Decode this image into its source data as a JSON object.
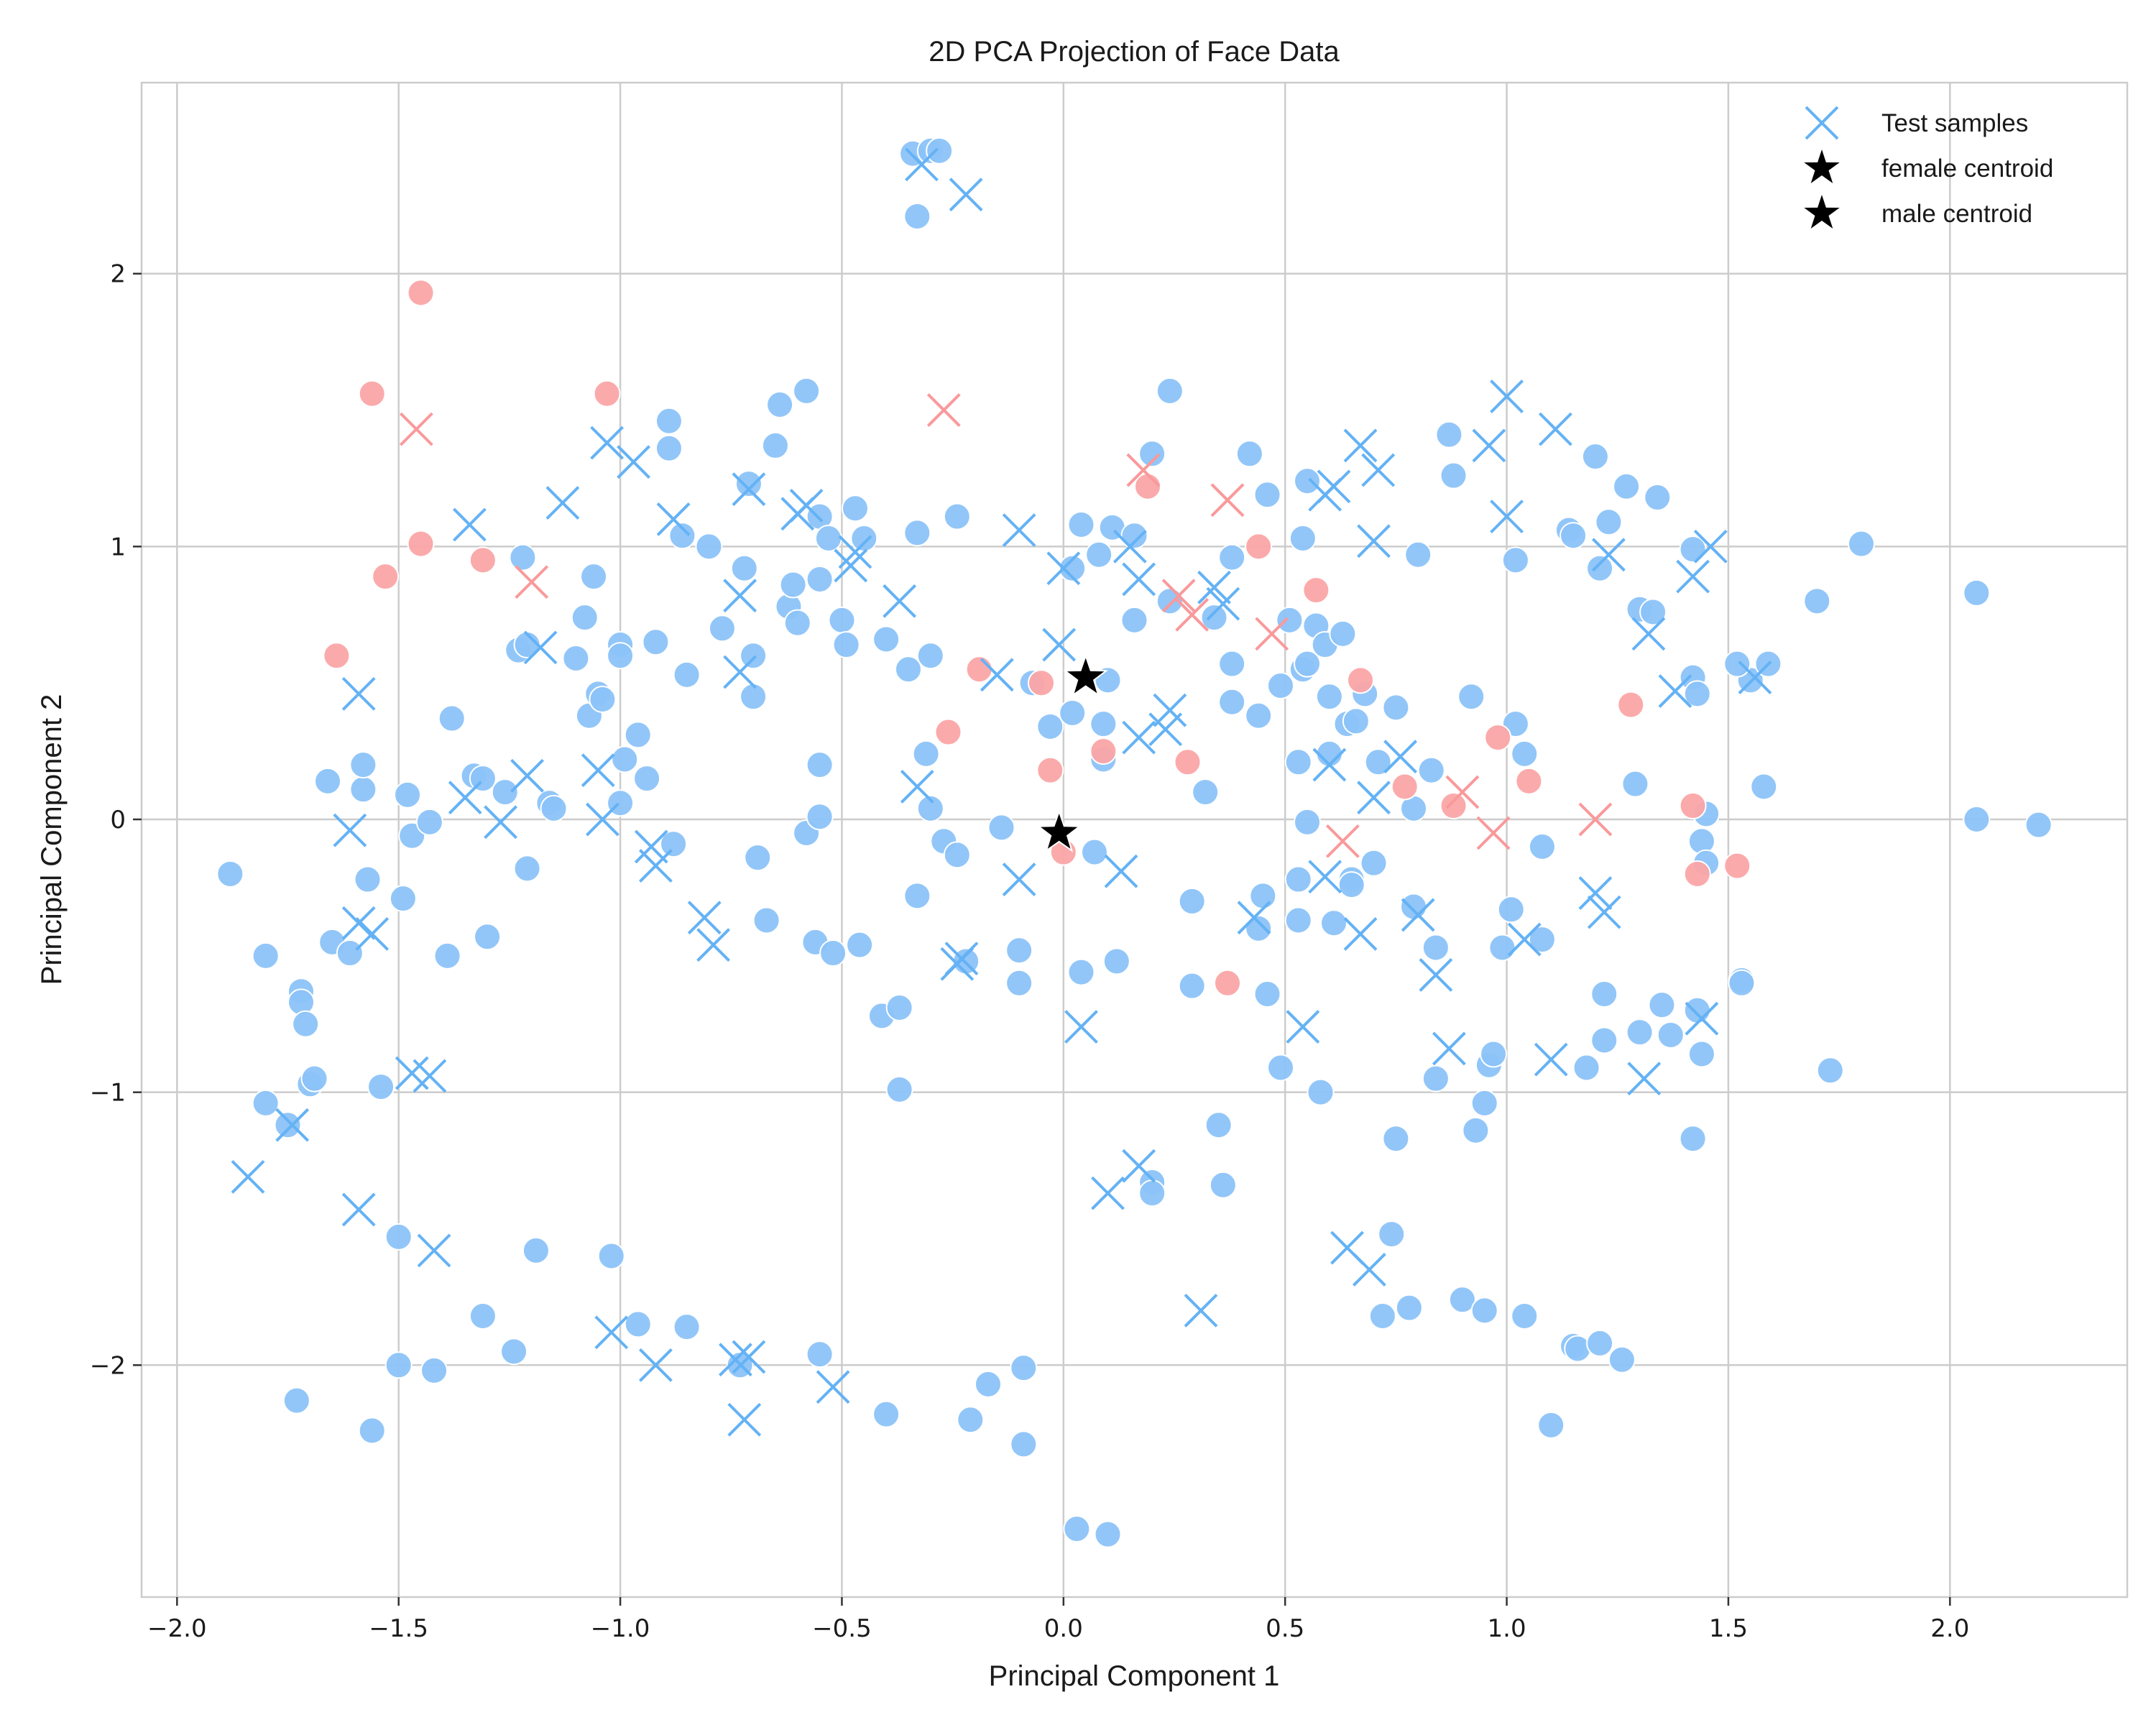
{
  "chart_data": {
    "type": "scatter",
    "title": "2D PCA Projection of Face Data",
    "xlabel": "Principal Component 1",
    "ylabel": "Principal Component 2",
    "xlim": [
      -2.08,
      2.4
    ],
    "ylim": [
      -2.85,
      2.7
    ],
    "xticks": [
      -2.0,
      -1.5,
      -1.0,
      -0.5,
      0.0,
      0.5,
      1.0,
      1.5,
      2.0
    ],
    "xtick_labels": [
      "−2.0",
      "−1.5",
      "−1.0",
      "−0.5",
      "0.0",
      "0.5",
      "1.0",
      "1.5",
      "2.0"
    ],
    "yticks": [
      -2,
      -1,
      0,
      1,
      2
    ],
    "ytick_labels": [
      "−2",
      "−1",
      "0",
      "1",
      "2"
    ],
    "grid": true,
    "legend_placement": "top-right",
    "legend": [
      {
        "label": "Test samples",
        "marker": "x",
        "color": "#64b2f5"
      },
      {
        "label": "female centroid",
        "marker": "star",
        "color": "#000000"
      },
      {
        "label": "male centroid",
        "marker": "star",
        "color": "#000000"
      }
    ],
    "colors": {
      "male": "#8cc3f8",
      "female": "#fba5a6",
      "test_male": "#64b2f5",
      "test_female": "#f9999b",
      "centroid": "#000000"
    },
    "centroids": [
      {
        "name": "female centroid",
        "x": 0.05,
        "y": 0.52
      },
      {
        "name": "male centroid",
        "x": -0.01,
        "y": -0.05
      }
    ],
    "train_male": [
      [
        -0.34,
        2.44
      ],
      [
        -0.3,
        2.45
      ],
      [
        -0.28,
        2.45
      ],
      [
        -0.33,
        2.21
      ],
      [
        -1.88,
        -0.2
      ],
      [
        -1.8,
        -0.5
      ],
      [
        -1.8,
        -1.04
      ],
      [
        -1.75,
        -1.12
      ],
      [
        -1.73,
        -2.13
      ],
      [
        -1.72,
        -0.63
      ],
      [
        -1.72,
        -0.67
      ],
      [
        -1.71,
        -0.75
      ],
      [
        -1.7,
        -0.97
      ],
      [
        -1.69,
        -0.95
      ],
      [
        -1.66,
        0.14
      ],
      [
        -1.65,
        -0.45
      ],
      [
        -1.61,
        -0.49
      ],
      [
        -1.58,
        0.11
      ],
      [
        -1.58,
        0.2
      ],
      [
        -1.57,
        -0.22
      ],
      [
        -1.56,
        -2.24
      ],
      [
        -1.54,
        -0.98
      ],
      [
        -1.5,
        -2.0
      ],
      [
        -1.5,
        -1.53
      ],
      [
        -1.49,
        -0.29
      ],
      [
        -1.48,
        0.09
      ],
      [
        -1.47,
        -0.06
      ],
      [
        -1.42,
        -2.02
      ],
      [
        -1.43,
        -0.01
      ],
      [
        -1.39,
        -0.5
      ],
      [
        -1.38,
        0.37
      ],
      [
        -1.33,
        0.16
      ],
      [
        -1.31,
        0.15
      ],
      [
        -1.3,
        -0.43
      ],
      [
        -1.31,
        -1.82
      ],
      [
        -1.26,
        0.1
      ],
      [
        -1.24,
        -1.95
      ],
      [
        -1.23,
        0.62
      ],
      [
        -1.22,
        0.96
      ],
      [
        -1.21,
        0.64
      ],
      [
        -1.21,
        -0.18
      ],
      [
        -1.19,
        -1.58
      ],
      [
        -1.16,
        0.06
      ],
      [
        -1.15,
        0.04
      ],
      [
        -1.1,
        0.59
      ],
      [
        -1.08,
        0.74
      ],
      [
        -1.07,
        0.38
      ],
      [
        -1.06,
        0.89
      ],
      [
        -1.05,
        0.46
      ],
      [
        -1.04,
        0.44
      ],
      [
        -1.02,
        -1.6
      ],
      [
        -1.0,
        0.64
      ],
      [
        -1.0,
        0.6
      ],
      [
        -1.0,
        0.06
      ],
      [
        -0.99,
        0.22
      ],
      [
        -0.96,
        -1.85
      ],
      [
        -0.96,
        0.31
      ],
      [
        -0.94,
        0.15
      ],
      [
        -0.92,
        0.65
      ],
      [
        -0.89,
        1.46
      ],
      [
        -0.89,
        1.36
      ],
      [
        -0.88,
        -0.09
      ],
      [
        -0.86,
        1.04
      ],
      [
        -0.85,
        -1.86
      ],
      [
        -0.85,
        0.53
      ],
      [
        -0.8,
        1.0
      ],
      [
        -0.77,
        0.7
      ],
      [
        -0.73,
        -2.0
      ],
      [
        -0.72,
        0.92
      ],
      [
        -0.71,
        1.23
      ],
      [
        -0.7,
        0.6
      ],
      [
        -0.7,
        0.45
      ],
      [
        -0.69,
        -0.14
      ],
      [
        -0.67,
        -0.37
      ],
      [
        -0.65,
        1.37
      ],
      [
        -0.64,
        1.52
      ],
      [
        -0.62,
        0.78
      ],
      [
        -0.61,
        0.86
      ],
      [
        -0.6,
        0.72
      ],
      [
        -0.58,
        1.57
      ],
      [
        -0.58,
        -0.05
      ],
      [
        -0.56,
        -0.45
      ],
      [
        -0.55,
        1.11
      ],
      [
        -0.55,
        0.88
      ],
      [
        -0.55,
        0.2
      ],
      [
        -0.55,
        0.01
      ],
      [
        -0.55,
        -1.96
      ],
      [
        -0.53,
        1.03
      ],
      [
        -0.52,
        -0.49
      ],
      [
        -0.5,
        0.73
      ],
      [
        -0.49,
        0.64
      ],
      [
        -0.47,
        1.14
      ],
      [
        -0.46,
        -0.46
      ],
      [
        -0.45,
        1.03
      ],
      [
        -0.41,
        -0.72
      ],
      [
        -0.4,
        0.66
      ],
      [
        -0.4,
        -2.18
      ],
      [
        -0.37,
        -0.69
      ],
      [
        -0.37,
        -0.99
      ],
      [
        -0.35,
        0.55
      ],
      [
        -0.33,
        1.05
      ],
      [
        -0.33,
        -0.28
      ],
      [
        -0.31,
        0.24
      ],
      [
        -0.3,
        0.6
      ],
      [
        -0.3,
        0.04
      ],
      [
        -0.27,
        -0.08
      ],
      [
        -0.24,
        -0.13
      ],
      [
        -0.24,
        1.11
      ],
      [
        -0.22,
        -0.52
      ],
      [
        -0.21,
        -2.2
      ],
      [
        -0.17,
        -2.07
      ],
      [
        -0.14,
        -0.03
      ],
      [
        -0.1,
        -0.48
      ],
      [
        -0.1,
        -0.6
      ],
      [
        -0.09,
        -2.01
      ],
      [
        -0.09,
        -2.29
      ],
      [
        -0.07,
        0.5
      ],
      [
        -0.03,
        0.34
      ],
      [
        0.02,
        0.92
      ],
      [
        0.02,
        0.39
      ],
      [
        0.03,
        -2.6
      ],
      [
        0.04,
        1.08
      ],
      [
        0.04,
        -0.56
      ],
      [
        0.07,
        -0.12
      ],
      [
        0.08,
        0.97
      ],
      [
        0.09,
        0.22
      ],
      [
        0.09,
        0.35
      ],
      [
        0.1,
        0.51
      ],
      [
        0.1,
        -2.62
      ],
      [
        0.11,
        1.07
      ],
      [
        0.12,
        -0.52
      ],
      [
        0.16,
        0.73
      ],
      [
        0.16,
        1.04
      ],
      [
        0.2,
        1.34
      ],
      [
        0.2,
        -1.33
      ],
      [
        0.2,
        -1.37
      ],
      [
        0.24,
        1.57
      ],
      [
        0.24,
        0.8
      ],
      [
        0.29,
        -0.3
      ],
      [
        0.29,
        -0.61
      ],
      [
        0.32,
        0.1
      ],
      [
        0.34,
        0.74
      ],
      [
        0.35,
        -1.12
      ],
      [
        0.36,
        -1.34
      ],
      [
        0.38,
        0.96
      ],
      [
        0.38,
        0.57
      ],
      [
        0.38,
        0.43
      ],
      [
        0.42,
        1.34
      ],
      [
        0.44,
        -0.4
      ],
      [
        0.44,
        0.38
      ],
      [
        0.45,
        -0.28
      ],
      [
        0.46,
        1.19
      ],
      [
        0.46,
        -0.64
      ],
      [
        0.49,
        0.49
      ],
      [
        0.49,
        -0.91
      ],
      [
        0.51,
        0.73
      ],
      [
        0.53,
        0.21
      ],
      [
        0.53,
        -0.22
      ],
      [
        0.53,
        -0.37
      ],
      [
        0.54,
        1.03
      ],
      [
        0.54,
        0.55
      ],
      [
        0.55,
        0.57
      ],
      [
        0.55,
        -0.01
      ],
      [
        0.55,
        1.24
      ],
      [
        0.57,
        0.71
      ],
      [
        0.58,
        -1.0
      ],
      [
        0.59,
        0.64
      ],
      [
        0.6,
        0.24
      ],
      [
        0.6,
        0.45
      ],
      [
        0.61,
        -0.38
      ],
      [
        0.63,
        0.68
      ],
      [
        0.64,
        0.35
      ],
      [
        0.65,
        -0.22
      ],
      [
        0.65,
        -0.24
      ],
      [
        0.66,
        0.36
      ],
      [
        0.68,
        0.46
      ],
      [
        0.7,
        -0.16
      ],
      [
        0.71,
        0.21
      ],
      [
        0.72,
        -1.82
      ],
      [
        0.74,
        -1.52
      ],
      [
        0.75,
        0.41
      ],
      [
        0.75,
        -1.17
      ],
      [
        0.78,
        -1.79
      ],
      [
        0.79,
        -0.32
      ],
      [
        0.79,
        0.04
      ],
      [
        0.8,
        0.97
      ],
      [
        0.83,
        0.18
      ],
      [
        0.84,
        -0.47
      ],
      [
        0.84,
        -0.95
      ],
      [
        0.87,
        1.41
      ],
      [
        0.88,
        1.26
      ],
      [
        0.9,
        -1.76
      ],
      [
        0.92,
        0.45
      ],
      [
        0.93,
        -1.14
      ],
      [
        0.95,
        -1.8
      ],
      [
        0.95,
        -1.04
      ],
      [
        0.96,
        -0.9
      ],
      [
        0.97,
        -0.86
      ],
      [
        0.99,
        -0.47
      ],
      [
        1.01,
        -0.33
      ],
      [
        1.02,
        0.35
      ],
      [
        1.02,
        0.95
      ],
      [
        1.04,
        0.24
      ],
      [
        1.04,
        -1.82
      ],
      [
        1.08,
        -0.44
      ],
      [
        1.08,
        -0.1
      ],
      [
        1.1,
        -2.22
      ],
      [
        1.14,
        1.06
      ],
      [
        1.15,
        1.04
      ],
      [
        1.15,
        -1.93
      ],
      [
        1.16,
        -1.94
      ],
      [
        1.18,
        -0.91
      ],
      [
        1.2,
        1.33
      ],
      [
        1.21,
        0.92
      ],
      [
        1.21,
        -1.92
      ],
      [
        1.22,
        -0.64
      ],
      [
        1.22,
        -0.81
      ],
      [
        1.23,
        1.09
      ],
      [
        1.26,
        -1.98
      ],
      [
        1.27,
        1.22
      ],
      [
        1.29,
        0.13
      ],
      [
        1.3,
        0.77
      ],
      [
        1.3,
        -0.78
      ],
      [
        1.33,
        0.76
      ],
      [
        1.34,
        1.18
      ],
      [
        1.35,
        -0.68
      ],
      [
        1.37,
        -0.79
      ],
      [
        1.42,
        0.52
      ],
      [
        1.42,
        0.99
      ],
      [
        1.42,
        -1.17
      ],
      [
        1.43,
        -0.7
      ],
      [
        1.43,
        0.46
      ],
      [
        1.44,
        -0.08
      ],
      [
        1.44,
        -0.86
      ],
      [
        1.45,
        -0.16
      ],
      [
        1.45,
        0.02
      ],
      [
        1.53,
        -0.59
      ],
      [
        1.53,
        -0.6
      ],
      [
        1.55,
        0.51
      ],
      [
        1.58,
        0.12
      ],
      [
        1.59,
        0.57
      ],
      [
        1.7,
        0.8
      ],
      [
        1.73,
        -0.92
      ],
      [
        1.8,
        1.01
      ],
      [
        2.06,
        0.83
      ],
      [
        2.06,
        0.0
      ],
      [
        2.2,
        -0.02
      ],
      [
        1.52,
        0.57
      ]
    ],
    "train_female": [
      [
        -1.45,
        1.93
      ],
      [
        -1.56,
        1.56
      ],
      [
        -1.53,
        0.89
      ],
      [
        -1.45,
        1.01
      ],
      [
        -1.64,
        0.6
      ],
      [
        -1.31,
        0.95
      ],
      [
        -1.03,
        1.56
      ],
      [
        -0.26,
        0.32
      ],
      [
        -0.19,
        0.55
      ],
      [
        -0.05,
        0.5
      ],
      [
        -0.03,
        0.18
      ],
      [
        0.0,
        -0.12
      ],
      [
        0.09,
        0.25
      ],
      [
        0.19,
        1.22
      ],
      [
        0.28,
        0.21
      ],
      [
        0.37,
        -0.6
      ],
      [
        0.44,
        1.0
      ],
      [
        0.57,
        0.84
      ],
      [
        0.67,
        0.51
      ],
      [
        0.77,
        0.12
      ],
      [
        0.88,
        0.05
      ],
      [
        0.98,
        0.3
      ],
      [
        1.05,
        0.14
      ],
      [
        1.28,
        0.42
      ],
      [
        1.42,
        0.05
      ],
      [
        1.43,
        -0.2
      ],
      [
        1.52,
        -0.17
      ]
    ],
    "test_male": [
      [
        -0.32,
        2.4
      ],
      [
        -0.22,
        2.29
      ],
      [
        -1.84,
        -1.31
      ],
      [
        -1.74,
        -1.12
      ],
      [
        -1.59,
        0.46
      ],
      [
        -1.61,
        -0.04
      ],
      [
        -1.59,
        -0.38
      ],
      [
        -1.56,
        -0.42
      ],
      [
        -1.59,
        -1.43
      ],
      [
        -1.47,
        -0.93
      ],
      [
        -1.43,
        -0.94
      ],
      [
        -1.42,
        -1.58
      ],
      [
        -1.34,
        1.08
      ],
      [
        -1.35,
        0.08
      ],
      [
        -1.27,
        -0.01
      ],
      [
        -1.21,
        0.16
      ],
      [
        -1.18,
        0.63
      ],
      [
        -1.13,
        1.16
      ],
      [
        -1.04,
        0.0
      ],
      [
        -1.05,
        0.18
      ],
      [
        -1.03,
        1.38
      ],
      [
        -0.97,
        1.31
      ],
      [
        -1.02,
        -1.88
      ],
      [
        -0.93,
        -0.1
      ],
      [
        -0.92,
        -0.17
      ],
      [
        -0.92,
        -2.0
      ],
      [
        -0.88,
        1.1
      ],
      [
        -0.81,
        -0.36
      ],
      [
        -0.79,
        -0.46
      ],
      [
        -0.73,
        0.82
      ],
      [
        -0.73,
        0.54
      ],
      [
        -0.71,
        1.21
      ],
      [
        -0.74,
        -1.98
      ],
      [
        -0.71,
        -1.97
      ],
      [
        -0.72,
        -2.2
      ],
      [
        -0.6,
        1.12
      ],
      [
        -0.58,
        1.15
      ],
      [
        -0.52,
        -2.08
      ],
      [
        -0.48,
        0.93
      ],
      [
        -0.47,
        0.98
      ],
      [
        -0.37,
        0.8
      ],
      [
        -0.33,
        0.12
      ],
      [
        -0.24,
        -0.53
      ],
      [
        -0.23,
        -0.51
      ],
      [
        -0.15,
        0.53
      ],
      [
        -0.1,
        1.06
      ],
      [
        -0.1,
        -0.22
      ],
      [
        -0.01,
        0.64
      ],
      [
        0.0,
        0.92
      ],
      [
        0.04,
        -0.76
      ],
      [
        0.1,
        -1.37
      ],
      [
        0.13,
        -0.19
      ],
      [
        0.17,
        0.3
      ],
      [
        0.17,
        0.88
      ],
      [
        0.15,
        1.0
      ],
      [
        0.17,
        -1.27
      ],
      [
        0.23,
        0.33
      ],
      [
        0.24,
        0.4
      ],
      [
        0.31,
        -1.8
      ],
      [
        0.34,
        0.85
      ],
      [
        0.36,
        0.79
      ],
      [
        0.43,
        -0.36
      ],
      [
        0.54,
        -0.76
      ],
      [
        0.59,
        -0.21
      ],
      [
        0.6,
        0.2
      ],
      [
        0.59,
        1.19
      ],
      [
        0.61,
        1.22
      ],
      [
        0.64,
        -1.57
      ],
      [
        0.67,
        -0.42
      ],
      [
        0.67,
        1.37
      ],
      [
        0.71,
        1.28
      ],
      [
        0.7,
        1.02
      ],
      [
        0.7,
        0.08
      ],
      [
        0.69,
        -1.65
      ],
      [
        0.76,
        0.23
      ],
      [
        0.8,
        -0.35
      ],
      [
        0.84,
        -0.57
      ],
      [
        0.87,
        -0.84
      ],
      [
        0.96,
        1.37
      ],
      [
        1.0,
        1.55
      ],
      [
        1.0,
        1.11
      ],
      [
        1.04,
        -0.44
      ],
      [
        1.1,
        -0.88
      ],
      [
        1.11,
        1.43
      ],
      [
        1.2,
        -0.27
      ],
      [
        1.22,
        -0.34
      ],
      [
        1.23,
        0.97
      ],
      [
        1.31,
        -0.95
      ],
      [
        1.32,
        0.68
      ],
      [
        1.38,
        0.47
      ],
      [
        1.42,
        0.89
      ],
      [
        1.44,
        -0.73
      ],
      [
        1.46,
        1.0
      ],
      [
        1.56,
        0.52
      ]
    ],
    "test_female": [
      [
        -1.46,
        1.43
      ],
      [
        -1.2,
        0.87
      ],
      [
        -0.27,
        1.5
      ],
      [
        0.18,
        1.28
      ],
      [
        0.26,
        0.82
      ],
      [
        0.29,
        0.75
      ],
      [
        0.37,
        1.17
      ],
      [
        0.47,
        0.68
      ],
      [
        0.63,
        -0.08
      ],
      [
        0.9,
        0.1
      ],
      [
        0.97,
        -0.05
      ],
      [
        1.2,
        0.0
      ]
    ]
  }
}
